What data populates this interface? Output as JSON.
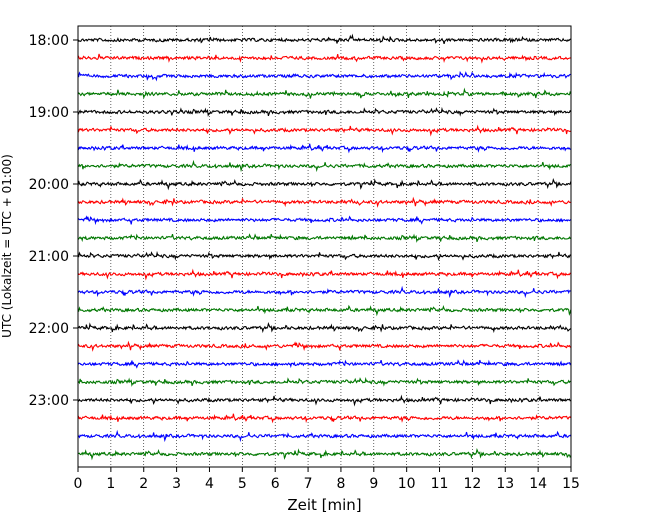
{
  "chart_data": {
    "type": "line",
    "title": "",
    "xlabel": "Zeit  [min]",
    "ylabel": "UTC (Lokalzeit = UTC + 01:00)",
    "xlim": [
      0,
      15
    ],
    "x_ticks": [
      "0",
      "1",
      "2",
      "3",
      "4",
      "5",
      "6",
      "7",
      "8",
      "9",
      "10",
      "11",
      "12",
      "13",
      "14",
      "15"
    ],
    "y_tick_labels": [
      "18:00",
      "19:00",
      "20:00",
      "21:00",
      "22:00",
      "23:00"
    ],
    "trace_start_times": [
      "18:00",
      "18:15",
      "18:30",
      "18:45",
      "19:00",
      "19:15",
      "19:30",
      "19:45",
      "20:00",
      "20:15",
      "20:30",
      "20:45",
      "21:00",
      "21:15",
      "21:30",
      "21:45",
      "22:00",
      "22:15",
      "22:30",
      "22:45",
      "23:00",
      "23:15",
      "23:30",
      "23:45"
    ],
    "trace_colors": [
      "#000000",
      "#ff0000",
      "#0000ff",
      "#007700"
    ],
    "grid": "vertical dotted lines at each minute",
    "legend": "none"
  }
}
